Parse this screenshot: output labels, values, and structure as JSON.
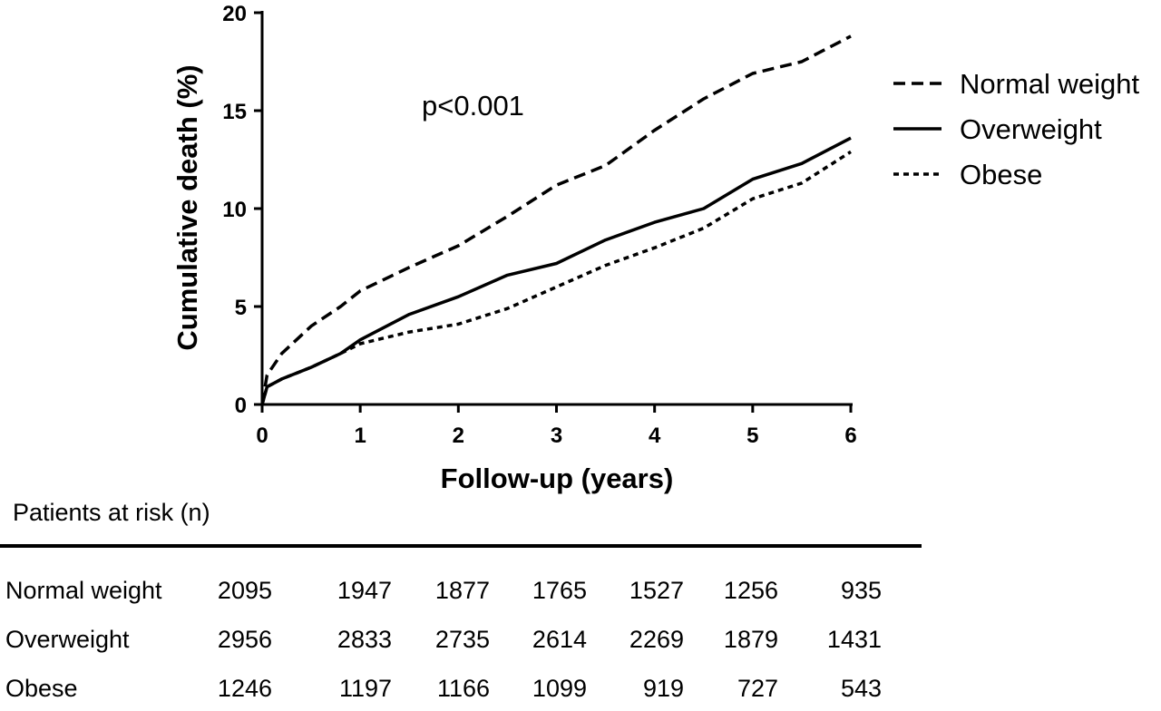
{
  "chart_data": {
    "type": "line",
    "title": "",
    "xlabel": "Follow-up (years)",
    "ylabel": "Cumulative death (%)",
    "xlim": [
      0,
      6
    ],
    "ylim": [
      0,
      20
    ],
    "xticks": [
      "0",
      "1",
      "2",
      "3",
      "4",
      "5",
      "6"
    ],
    "yticks": [
      "0",
      "5",
      "10",
      "15",
      "20"
    ],
    "grid": false,
    "legend_position": "top-right",
    "annotation": "p<0.001",
    "series": [
      {
        "name": "Normal weight",
        "line_style": "dashed",
        "x": [
          0,
          0.05,
          0.2,
          0.5,
          0.8,
          1.0,
          1.5,
          2.0,
          2.5,
          3.0,
          3.5,
          4.0,
          4.5,
          5.0,
          5.5,
          6.0
        ],
        "y": [
          0,
          1.5,
          2.6,
          4.0,
          5.0,
          5.8,
          7.0,
          8.1,
          9.6,
          11.2,
          12.2,
          14.0,
          15.6,
          16.9,
          17.5,
          18.8
        ]
      },
      {
        "name": "Overweight",
        "line_style": "solid",
        "x": [
          0,
          0.05,
          0.2,
          0.5,
          0.8,
          1.0,
          1.5,
          2.0,
          2.5,
          3.0,
          3.5,
          4.0,
          4.5,
          5.0,
          5.5,
          6.0
        ],
        "y": [
          0,
          0.9,
          1.3,
          1.9,
          2.6,
          3.3,
          4.6,
          5.5,
          6.6,
          7.2,
          8.4,
          9.3,
          10.0,
          11.5,
          12.3,
          13.6
        ]
      },
      {
        "name": "Obese",
        "line_style": "dotted",
        "x": [
          0,
          0.05,
          0.2,
          0.5,
          0.8,
          1.0,
          1.5,
          2.0,
          2.5,
          3.0,
          3.5,
          4.0,
          4.5,
          5.0,
          5.5,
          6.0
        ],
        "y": [
          0,
          0.9,
          1.3,
          1.9,
          2.6,
          3.1,
          3.7,
          4.1,
          4.9,
          6.0,
          7.1,
          8.0,
          9.0,
          10.5,
          11.3,
          12.9
        ]
      }
    ]
  },
  "risk_table": {
    "title": "Patients at risk (n)",
    "rows": [
      {
        "label": "Normal weight",
        "values": [
          "2095",
          "1947",
          "1877",
          "1765",
          "1527",
          "1256",
          "935"
        ]
      },
      {
        "label": "Overweight",
        "values": [
          "2956",
          "2833",
          "2735",
          "2614",
          "2269",
          "1879",
          "1431"
        ]
      },
      {
        "label": "Obese",
        "values": [
          "1246",
          "1197",
          "1166",
          "1099",
          "919",
          "727",
          "543"
        ]
      }
    ]
  }
}
